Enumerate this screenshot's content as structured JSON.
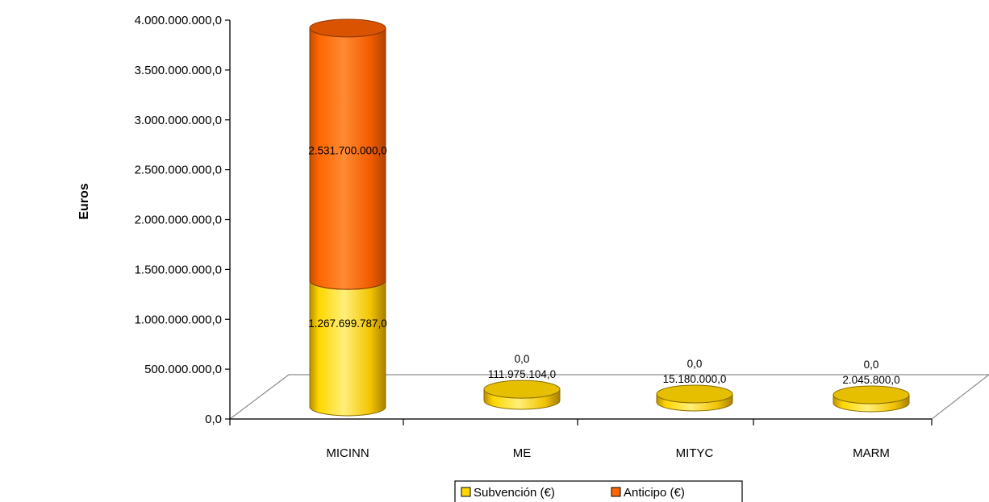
{
  "chart_data": {
    "type": "bar",
    "title": "",
    "xlabel": "",
    "ylabel": "Euros",
    "ylim": [
      0,
      4000000000
    ],
    "y_ticks": [
      "0,0",
      "500.000.000,0",
      "1.000.000.000,0",
      "1.500.000.000,0",
      "2.000.000.000,0",
      "2.500.000.000,0",
      "3.000.000.000,0",
      "3.500.000.000,0",
      "4.000.000.000,0"
    ],
    "categories": [
      "MICINN",
      "ME",
      "MITYC",
      "MARM"
    ],
    "stacked": true,
    "three_d": true,
    "grid": false,
    "legend_position": "bottom",
    "series": [
      {
        "name": "Subvención (€)",
        "color": "#FFD700",
        "values": [
          1267699787,
          111975104,
          15180000,
          2045800
        ],
        "labels": [
          "1.267.699.787,0",
          "111.975.104,0",
          "15.180.000,0",
          "2.045.800,0"
        ]
      },
      {
        "name": "Anticipo (€)",
        "color": "#FF6600",
        "values": [
          2531700000,
          0,
          0,
          0
        ],
        "labels": [
          "2.531.700.000,0",
          "0,0",
          "0,0",
          "0,0"
        ]
      }
    ]
  }
}
